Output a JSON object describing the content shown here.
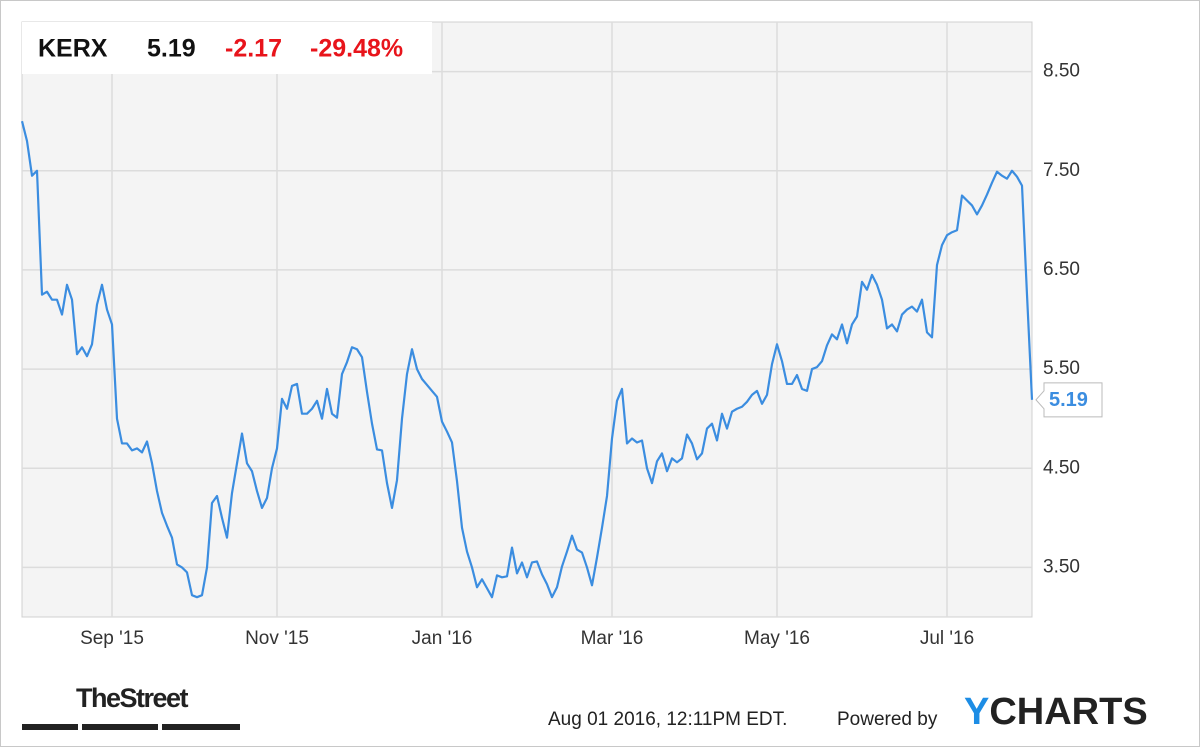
{
  "chart_data": {
    "type": "line",
    "ticker": "KERX",
    "price": "5.19",
    "change": "-2.17",
    "change_percent": "-29.48%",
    "color": "#3b8de0",
    "change_color": "#e8141b",
    "grid": true,
    "ylim": [
      3.0,
      9.0
    ],
    "yticks": [
      {
        "value": 3.5,
        "label": "3.50"
      },
      {
        "value": 4.5,
        "label": "4.50"
      },
      {
        "value": 5.5,
        "label": "5.50"
      },
      {
        "value": 6.5,
        "label": "6.50"
      },
      {
        "value": 7.5,
        "label": "7.50"
      },
      {
        "value": 8.5,
        "label": "8.50"
      }
    ],
    "categories": [
      null,
      null,
      null,
      null,
      null,
      null,
      null,
      null,
      null,
      null,
      null,
      null,
      null,
      null,
      null,
      null,
      null,
      null,
      "Sep '15",
      null,
      null,
      null,
      null,
      null,
      null,
      null,
      null,
      null,
      null,
      null,
      null,
      null,
      null,
      null,
      null,
      null,
      null,
      null,
      null,
      null,
      null,
      null,
      null,
      null,
      null,
      null,
      null,
      null,
      null,
      null,
      null,
      "Nov '15",
      null,
      null,
      null,
      null,
      null,
      null,
      null,
      null,
      null,
      null,
      null,
      null,
      null,
      null,
      null,
      null,
      null,
      null,
      null,
      null,
      null,
      null,
      null,
      null,
      null,
      null,
      null,
      null,
      null,
      null,
      null,
      null,
      "Jan '16",
      null,
      null,
      null,
      null,
      null,
      null,
      null,
      null,
      null,
      null,
      null,
      null,
      null,
      null,
      null,
      null,
      null,
      null,
      null,
      null,
      null,
      null,
      null,
      null,
      null,
      null,
      null,
      null,
      null,
      null,
      null,
      null,
      null,
      "Mar '16",
      null,
      null,
      null,
      null,
      null,
      null,
      null,
      null,
      null,
      null,
      null,
      null,
      null,
      null,
      null,
      null,
      null,
      null,
      null,
      null,
      null,
      null,
      null,
      null,
      null,
      null,
      null,
      null,
      null,
      null,
      null,
      null,
      "May '16",
      null,
      null,
      null,
      null,
      null,
      null,
      null,
      null,
      null,
      null,
      null,
      null,
      null,
      null,
      null,
      null,
      null,
      null,
      null,
      null,
      null,
      null,
      null,
      null,
      null,
      null,
      null,
      null,
      null,
      null,
      null,
      null,
      null,
      "Jul '16",
      null,
      null,
      null,
      null,
      null,
      null,
      null,
      null,
      null,
      null,
      null,
      null,
      null,
      null,
      null,
      null,
      null
    ],
    "values": [
      8.0,
      7.8,
      7.45,
      7.5,
      6.25,
      6.28,
      6.2,
      6.2,
      6.05,
      6.35,
      6.2,
      5.65,
      5.72,
      5.63,
      5.75,
      6.15,
      6.35,
      6.1,
      5.95,
      5.0,
      4.75,
      4.75,
      4.68,
      4.7,
      4.66,
      4.77,
      4.55,
      4.27,
      4.05,
      3.92,
      3.8,
      3.53,
      3.5,
      3.45,
      3.22,
      3.2,
      3.22,
      3.5,
      4.15,
      4.22,
      4.0,
      3.8,
      4.25,
      4.55,
      4.85,
      4.55,
      4.47,
      4.27,
      4.1,
      4.2,
      4.5,
      4.7,
      5.2,
      5.1,
      5.33,
      5.35,
      5.05,
      5.05,
      5.1,
      5.18,
      5.0,
      5.3,
      5.05,
      5.01,
      5.45,
      5.57,
      5.72,
      5.7,
      5.62,
      5.27,
      4.95,
      4.69,
      4.68,
      4.35,
      4.1,
      4.38,
      5.0,
      5.45,
      5.7,
      5.5,
      5.4,
      5.34,
      5.28,
      5.22,
      4.97,
      4.87,
      4.76,
      4.37,
      3.9,
      3.66,
      3.5,
      3.3,
      3.38,
      3.29,
      3.2,
      3.42,
      3.4,
      3.41,
      3.7,
      3.44,
      3.55,
      3.4,
      3.55,
      3.56,
      3.43,
      3.33,
      3.2,
      3.3,
      3.51,
      3.66,
      3.82,
      3.68,
      3.65,
      3.5,
      3.32,
      3.6,
      3.9,
      4.22,
      4.8,
      5.18,
      5.3,
      4.75,
      4.8,
      4.76,
      4.78,
      4.5,
      4.35,
      4.57,
      4.65,
      4.47,
      4.6,
      4.56,
      4.6,
      4.84,
      4.75,
      4.59,
      4.65,
      4.9,
      4.95,
      4.78,
      5.05,
      4.9,
      5.07,
      5.1,
      5.12,
      5.17,
      5.24,
      5.28,
      5.15,
      5.24,
      5.55,
      5.75,
      5.58,
      5.35,
      5.35,
      5.44,
      5.3,
      5.28,
      5.5,
      5.52,
      5.58,
      5.74,
      5.85,
      5.8,
      5.95,
      5.76,
      5.95,
      6.03,
      6.38,
      6.3,
      6.45,
      6.35,
      6.2,
      5.91,
      5.95,
      5.88,
      6.05,
      6.1,
      6.13,
      6.08,
      6.2,
      5.87,
      5.82,
      6.55,
      6.75,
      6.85,
      6.88,
      6.9,
      7.25,
      7.2,
      7.15,
      7.06,
      7.15,
      7.26,
      7.38,
      7.49,
      7.45,
      7.42,
      7.5,
      7.44,
      7.35,
      6.25,
      5.19
    ]
  },
  "footer": {
    "source_logo": "TheStreet",
    "timestamp": "Aug 01 2016, 12:11PM EDT.",
    "powered_by": "Powered by",
    "brand_first": "Y",
    "brand_rest": "CHARTS"
  }
}
